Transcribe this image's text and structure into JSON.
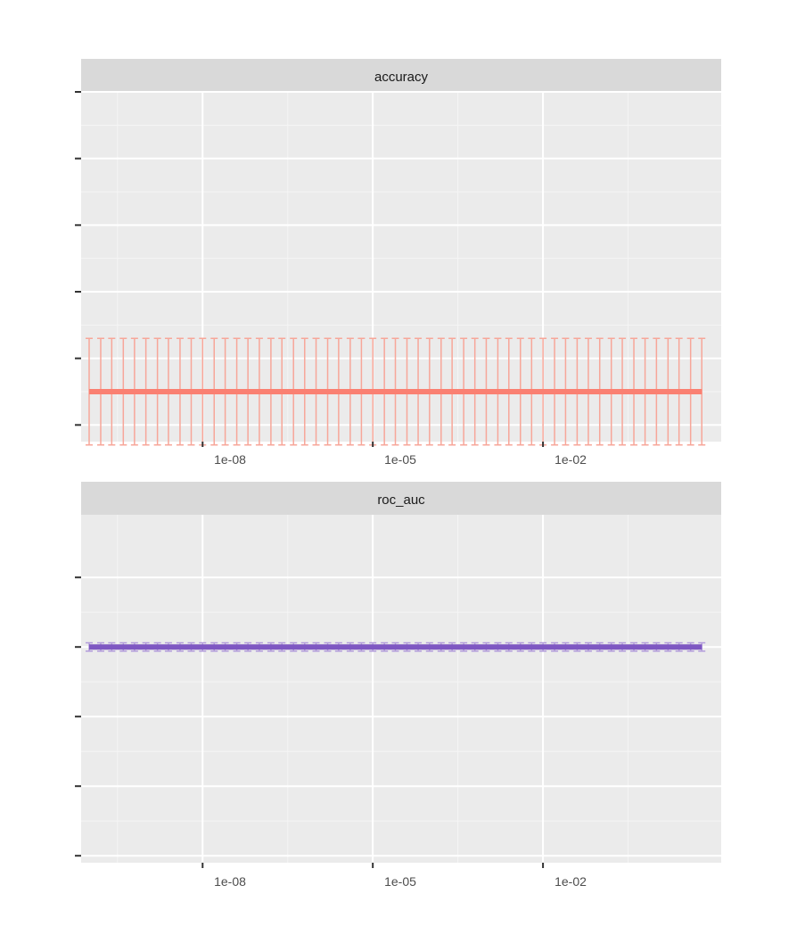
{
  "chart_data": [
    {
      "type": "line",
      "facet_label": "accuracy",
      "x_scale": "log10",
      "x_tick_labels": [
        "1e-08",
        "1e-05",
        "1e-02"
      ],
      "x_ticks": [
        1e-08,
        1e-05,
        0.01
      ],
      "xlim": [
        1e-10,
        10
      ],
      "ylim": [
        0.0,
        1.05
      ],
      "y_ticks": [
        0.05,
        0.25,
        0.45,
        0.65,
        0.85,
        1.05
      ],
      "y_tick_labels_shown": false,
      "color": "#FA8072",
      "errorbar_color": "#F7A699",
      "series": [
        {
          "x": [
            1e-10,
            1.6e-10,
            2.5e-10,
            4e-10,
            6.3e-10,
            1e-09,
            1.6e-09,
            2.5e-09,
            4e-09,
            6.3e-09,
            1e-08,
            1.6e-08,
            2.5e-08,
            4e-08,
            6.3e-08,
            1e-07,
            1.6e-07,
            2.5e-07,
            4e-07,
            6.3e-07,
            1e-06,
            1.6e-06,
            2.5e-06,
            4e-06,
            6.3e-06,
            1e-05,
            1.6e-05,
            2.5e-05,
            4e-05,
            6.3e-05,
            0.0001,
            0.00016,
            0.00025,
            0.0004,
            0.00063,
            0.001,
            0.0016,
            0.0025,
            0.004,
            0.0063,
            0.01,
            0.016,
            0.025,
            0.04,
            0.063,
            0.1,
            0.16,
            0.25,
            0.4,
            0.63,
            1,
            1.6,
            2.5,
            4,
            6.3
          ],
          "y": [
            0.15,
            0.15,
            0.15,
            0.15,
            0.15,
            0.15,
            0.15,
            0.15,
            0.15,
            0.15,
            0.15,
            0.15,
            0.15,
            0.15,
            0.15,
            0.15,
            0.15,
            0.15,
            0.15,
            0.15,
            0.15,
            0.15,
            0.15,
            0.15,
            0.15,
            0.15,
            0.15,
            0.15,
            0.15,
            0.15,
            0.15,
            0.15,
            0.15,
            0.15,
            0.15,
            0.15,
            0.15,
            0.15,
            0.15,
            0.15,
            0.15,
            0.15,
            0.15,
            0.15,
            0.15,
            0.15,
            0.15,
            0.15,
            0.15,
            0.15,
            0.15,
            0.15,
            0.15,
            0.15,
            0.15
          ],
          "err": [
            0.16,
            0.16,
            0.16,
            0.16,
            0.16,
            0.16,
            0.16,
            0.16,
            0.16,
            0.16,
            0.16,
            0.16,
            0.16,
            0.16,
            0.16,
            0.16,
            0.16,
            0.16,
            0.16,
            0.16,
            0.16,
            0.16,
            0.16,
            0.16,
            0.16,
            0.16,
            0.16,
            0.16,
            0.16,
            0.16,
            0.16,
            0.16,
            0.16,
            0.16,
            0.16,
            0.16,
            0.16,
            0.16,
            0.16,
            0.16,
            0.16,
            0.16,
            0.16,
            0.16,
            0.16,
            0.16,
            0.16,
            0.16,
            0.16,
            0.16,
            0.16,
            0.16,
            0.16,
            0.16,
            0.16
          ]
        }
      ]
    },
    {
      "type": "line",
      "facet_label": "roc_auc",
      "x_scale": "log10",
      "x_tick_labels": [
        "1e-08",
        "1e-05",
        "1e-02"
      ],
      "x_ticks": [
        1e-08,
        1e-05,
        0.01
      ],
      "xlim": [
        1e-10,
        10
      ],
      "ylim": [
        0.49,
        0.99
      ],
      "y_ticks": [
        0.5,
        0.6,
        0.7,
        0.8,
        0.9
      ],
      "y_tick_labels_shown": false,
      "color": "#7E57C2",
      "errorbar_color": "#B39DDB",
      "series": [
        {
          "x": [
            1e-10,
            1.6e-10,
            2.5e-10,
            4e-10,
            6.3e-10,
            1e-09,
            1.6e-09,
            2.5e-09,
            4e-09,
            6.3e-09,
            1e-08,
            1.6e-08,
            2.5e-08,
            4e-08,
            6.3e-08,
            1e-07,
            1.6e-07,
            2.5e-07,
            4e-07,
            6.3e-07,
            1e-06,
            1.6e-06,
            2.5e-06,
            4e-06,
            6.3e-06,
            1e-05,
            1.6e-05,
            2.5e-05,
            4e-05,
            6.3e-05,
            0.0001,
            0.00016,
            0.00025,
            0.0004,
            0.00063,
            0.001,
            0.0016,
            0.0025,
            0.004,
            0.0063,
            0.01,
            0.016,
            0.025,
            0.04,
            0.063,
            0.1,
            0.16,
            0.25,
            0.4,
            0.63,
            1,
            1.6,
            2.5,
            4,
            6.3
          ],
          "y": [
            0.8,
            0.8,
            0.8,
            0.8,
            0.8,
            0.8,
            0.8,
            0.8,
            0.8,
            0.8,
            0.8,
            0.8,
            0.8,
            0.8,
            0.8,
            0.8,
            0.8,
            0.8,
            0.8,
            0.8,
            0.8,
            0.8,
            0.8,
            0.8,
            0.8,
            0.8,
            0.8,
            0.8,
            0.8,
            0.8,
            0.8,
            0.8,
            0.8,
            0.8,
            0.8,
            0.8,
            0.8,
            0.8,
            0.8,
            0.8,
            0.8,
            0.8,
            0.8,
            0.8,
            0.8,
            0.8,
            0.8,
            0.8,
            0.8,
            0.8,
            0.8,
            0.8,
            0.8,
            0.8,
            0.8
          ],
          "err": [
            0.006,
            0.006,
            0.006,
            0.006,
            0.006,
            0.006,
            0.006,
            0.006,
            0.006,
            0.006,
            0.006,
            0.006,
            0.006,
            0.006,
            0.006,
            0.006,
            0.006,
            0.006,
            0.006,
            0.006,
            0.006,
            0.006,
            0.006,
            0.006,
            0.006,
            0.006,
            0.006,
            0.006,
            0.006,
            0.006,
            0.006,
            0.006,
            0.006,
            0.006,
            0.006,
            0.006,
            0.006,
            0.006,
            0.006,
            0.006,
            0.006,
            0.006,
            0.006,
            0.006,
            0.006,
            0.006,
            0.006,
            0.006,
            0.006,
            0.006,
            0.006,
            0.006,
            0.006,
            0.006,
            0.006
          ]
        }
      ]
    }
  ]
}
